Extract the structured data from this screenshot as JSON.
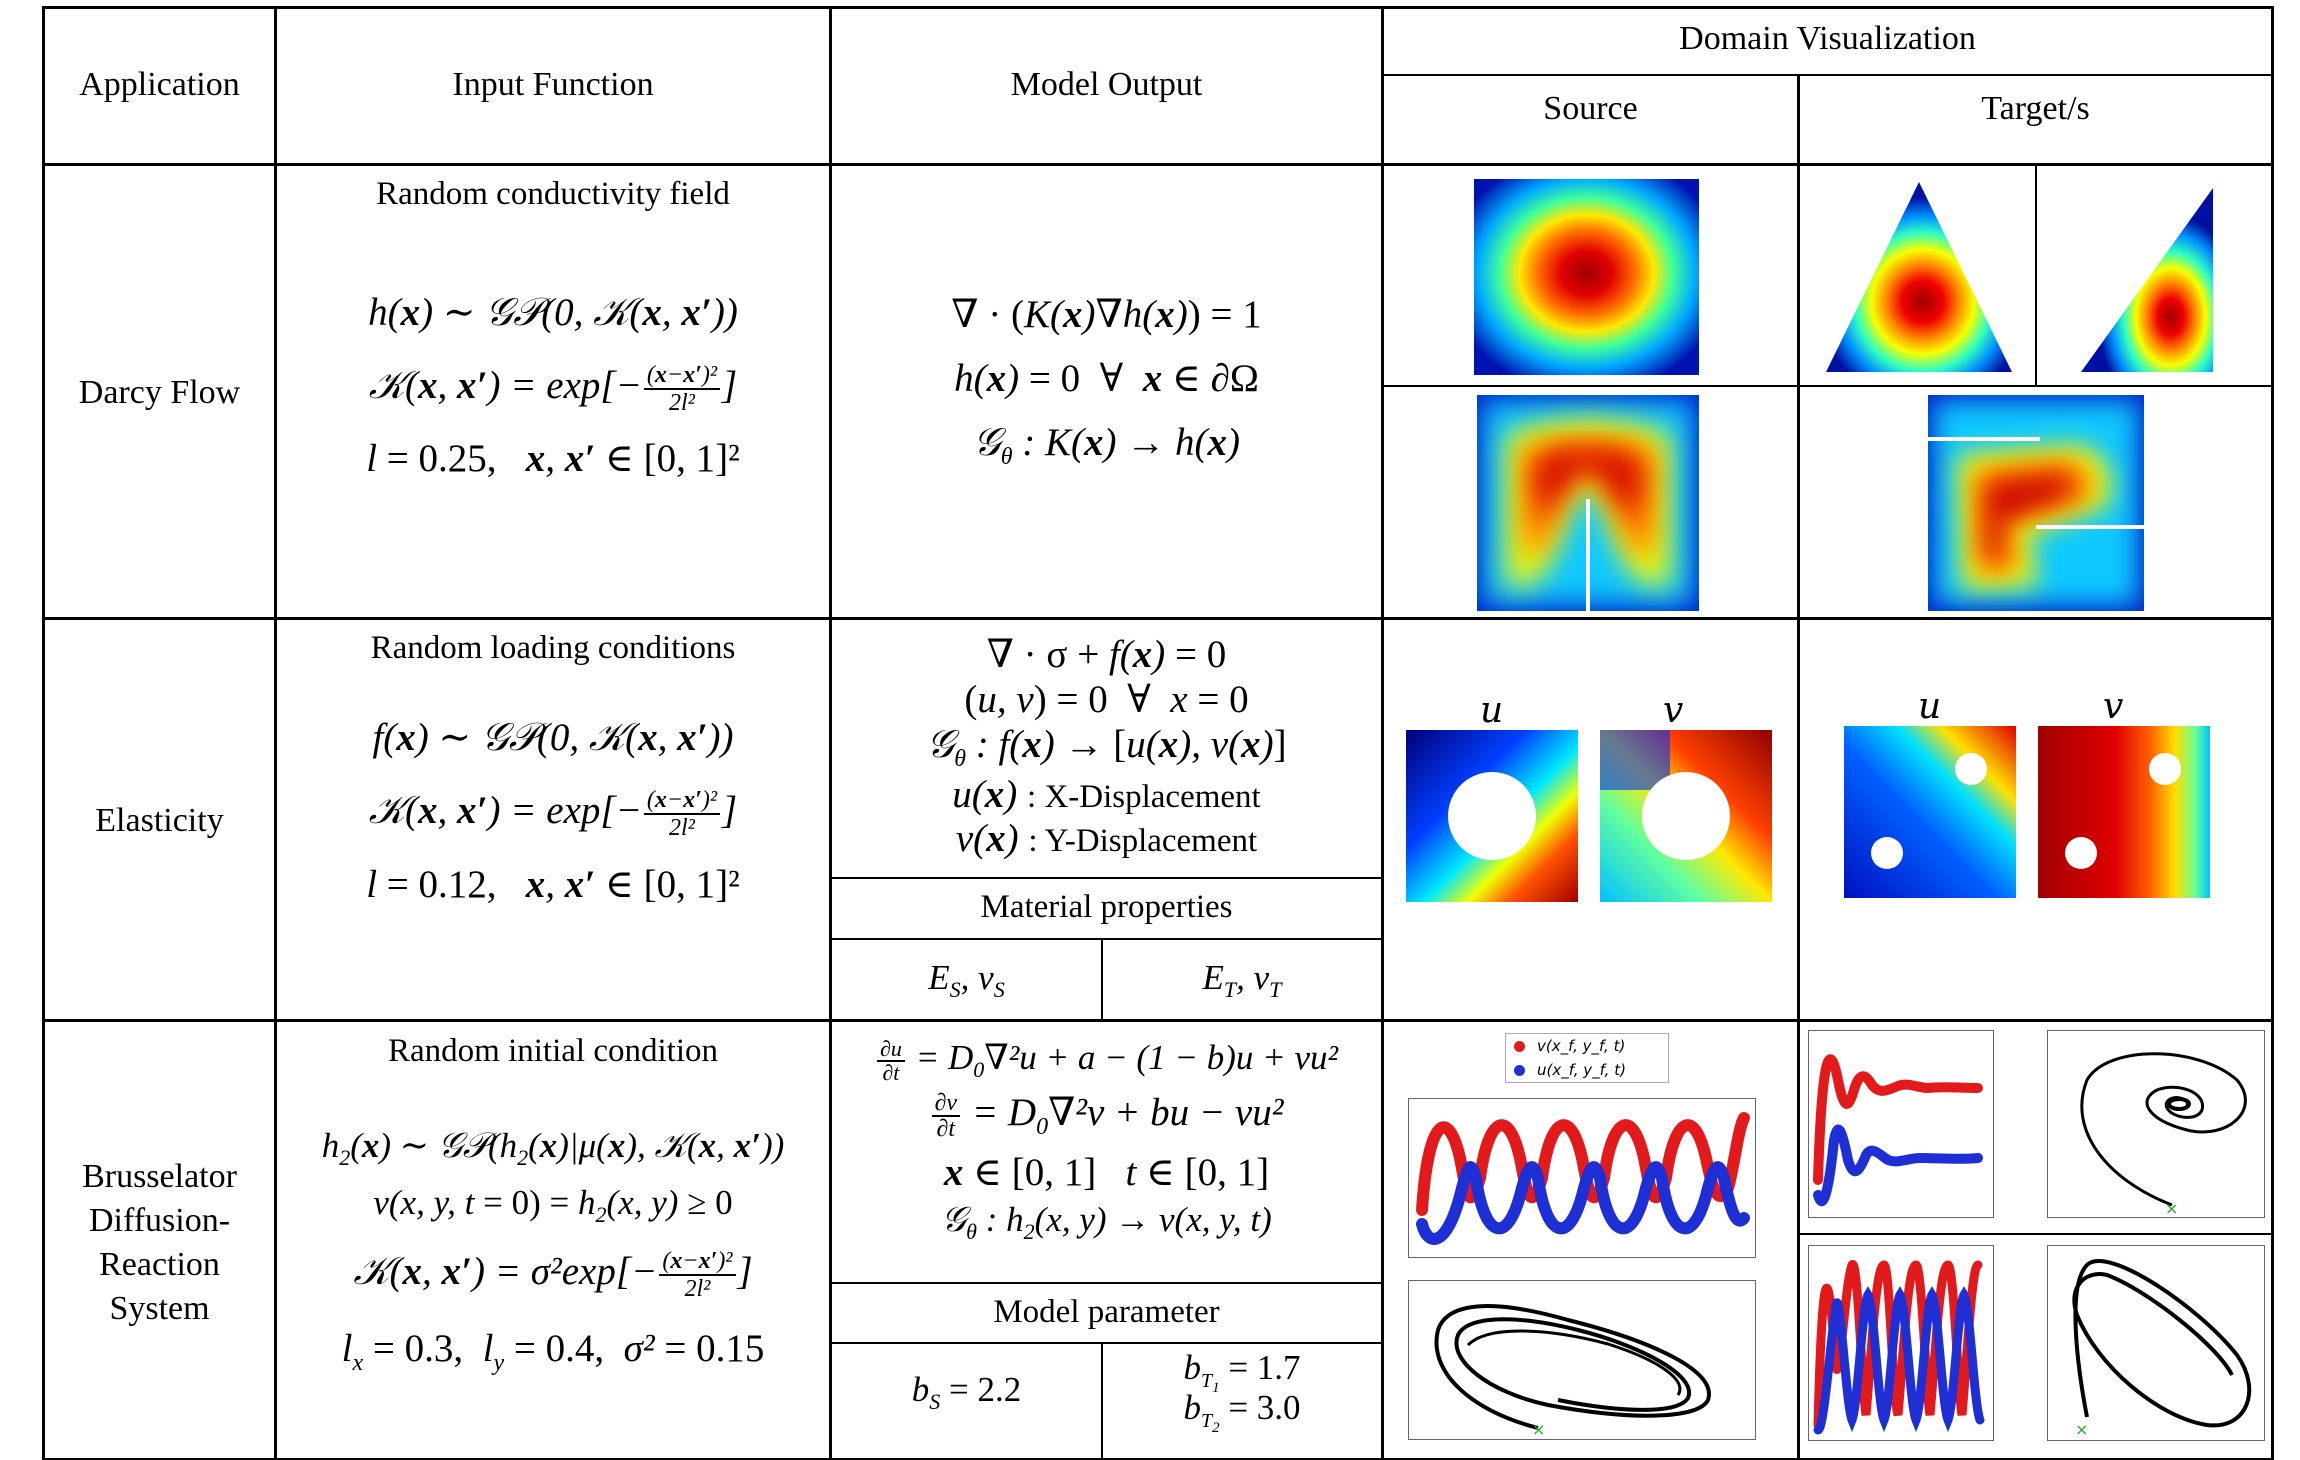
{
  "header": {
    "application": "Application",
    "input_function": "Input Function",
    "model_output": "Model Output",
    "domain_visualization": "Domain Visualization",
    "source": "Source",
    "targets": "Target/s"
  },
  "rows": [
    {
      "application": "Darcy Flow",
      "input_title": "Random conductivity field",
      "input_eq": [
        "h(x) ~ GP(0, K(x, x′))",
        "K(x, x′) = exp[−(x−x′)²/2l²]",
        "l = 0.25,   x, x′ ∈ [0,1]²"
      ],
      "output_eq": [
        "∇ · (K(x)∇h(x)) = 1",
        "h(x) = 0  ∀  x ∈ ∂Ω",
        "G_θ : K(x) → h(x)"
      ]
    },
    {
      "application": "Elasticity",
      "input_title": "Random loading conditions",
      "input_eq": [
        "f(x) ~ GP(0, K(x, x′))",
        "K(x, x′) = exp[−(x−x′)²/2l²]",
        "l = 0.12,   x, x′ ∈ [0,1]²"
      ],
      "output_eq": [
        "∇ · σ + f(x) = 0",
        "(u, v) = 0  ∀  x = 0",
        "G_θ : f(x) → [u(x), v(x)]"
      ],
      "output_desc": [
        ": X-Displacement",
        ": Y-Displacement"
      ],
      "material_title": "Material properties",
      "material": [
        "E_S, ν_S",
        "E_T, ν_T"
      ],
      "fig_labels": [
        "u",
        "v",
        "u",
        "v"
      ]
    },
    {
      "application": [
        "Brusselator",
        "Diffusion-",
        "Reaction",
        "System"
      ],
      "input_title": "Random initial condition",
      "input_eq": [
        "h₂(x) ~ GP(h₂(x)|μ(x), K(x, x′))",
        "v(x, y, t = 0) = h₂(x, y) ≥ 0",
        "K(x, x′) = σ²exp[−(x−x′)²/2l²]",
        "l_x = 0.3,   l_y = 0.4,   σ² = 0.15"
      ],
      "output_eq": [
        "∂u/∂t = D₀∇²u + a − (1 − b)u + vu²",
        "∂v/∂t = D₀∇²v + bu − vu²",
        "x ∈ [0,1]   t ∈ [0,1]",
        "G_θ : h₂(x, y) → v(x, y, t)"
      ],
      "param_title": "Model parameter",
      "param_source": "b_S = 2.2",
      "param_target": [
        "b_T1 = 1.7",
        "b_T2 = 3.0"
      ],
      "legend": [
        "v(x_f, y_f, t)",
        "u(x_f, y_f, t)"
      ]
    }
  ],
  "colors": {
    "red": "#e31a1c",
    "blue": "#1f2fd6",
    "jet_center": "#8b0000",
    "jet_edge": "#00008f"
  }
}
